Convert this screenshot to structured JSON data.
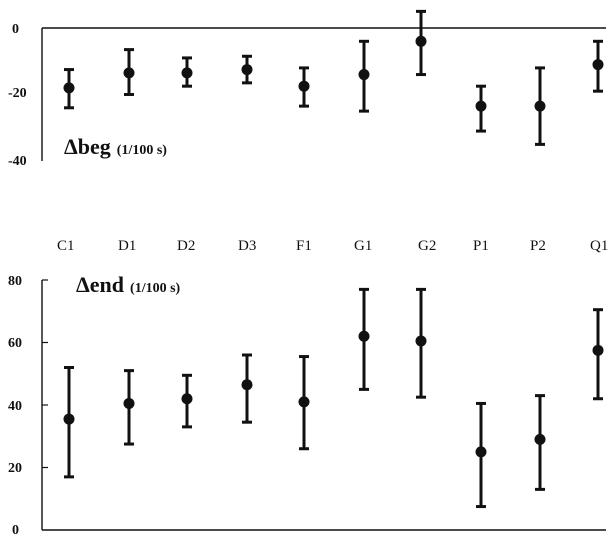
{
  "chart_data": [
    {
      "type": "scatter",
      "panel_label": {
        "prefix": "Δbeg",
        "unit": "(1/100 s)"
      },
      "categories": [
        "C1",
        "D1",
        "D2",
        "D3",
        "F1",
        "G1",
        "G2",
        "P1",
        "P2",
        "Q1"
      ],
      "series": [
        {
          "values": [
            -18,
            -13.5,
            -13.5,
            -12.5,
            -17.5,
            -14,
            -4,
            -23.5,
            -23.5,
            -11
          ],
          "err_low": [
            -24,
            -20,
            -17.5,
            -16.5,
            -23.5,
            -25,
            -14,
            -31,
            -35,
            -19
          ],
          "err_high": [
            -12.5,
            -6.5,
            -9,
            -8.5,
            -12,
            -4,
            5,
            -17.5,
            -12,
            -4
          ]
        }
      ],
      "ylim": [
        -40,
        0
      ],
      "yticks": [
        "0",
        "-20",
        "-40"
      ],
      "error_bars": true
    },
    {
      "type": "scatter",
      "panel_label": {
        "prefix": "Δend",
        "unit": "(1/100 s)"
      },
      "categories": [
        "C1",
        "D1",
        "D2",
        "D3",
        "F1",
        "G1",
        "G2",
        "P1",
        "P2",
        "Q1"
      ],
      "series": [
        {
          "values": [
            35.5,
            40.5,
            42,
            46.5,
            41,
            62,
            60.5,
            25,
            29,
            57.5
          ],
          "err_low": [
            17,
            27.5,
            33,
            34.5,
            26,
            45,
            42.5,
            7.5,
            13,
            42
          ],
          "err_high": [
            52,
            51,
            49.5,
            56,
            55.5,
            77,
            77,
            40.5,
            43,
            70.5
          ]
        }
      ],
      "ylim": [
        0,
        80
      ],
      "yticks": [
        "80",
        "60",
        "40",
        "20",
        "0"
      ],
      "error_bars": true
    }
  ]
}
